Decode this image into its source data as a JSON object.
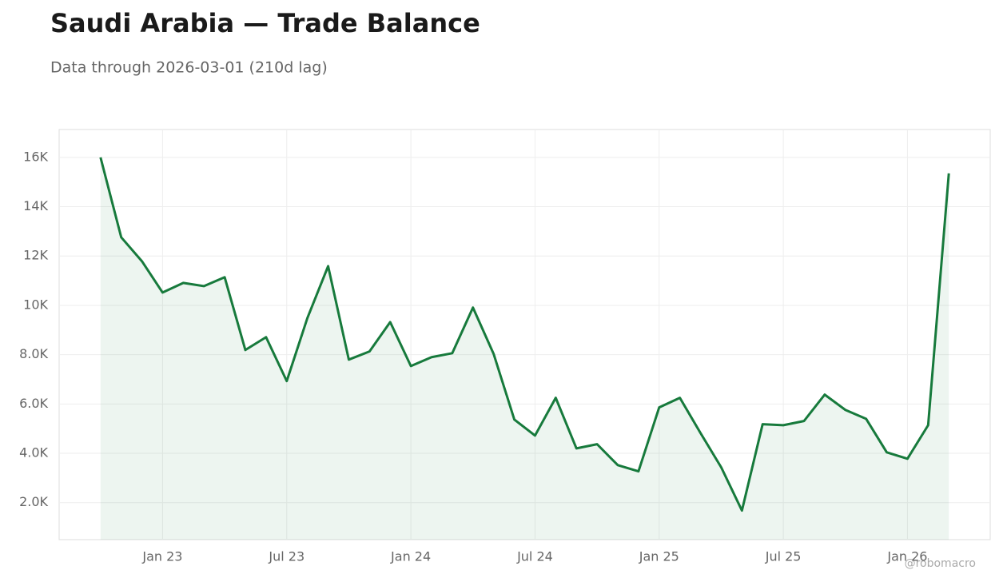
{
  "chart_data": {
    "type": "area",
    "title": "Saudi Arabia — Trade Balance",
    "subtitle": "Data through 2026-03-01 (210d lag)",
    "watermark": "@robomacro",
    "x": [
      "2022-10",
      "2022-11",
      "2022-12",
      "2023-01",
      "2023-02",
      "2023-03",
      "2023-04",
      "2023-05",
      "2023-06",
      "2023-07",
      "2023-08",
      "2023-09",
      "2023-10",
      "2023-11",
      "2023-12",
      "2024-01",
      "2024-02",
      "2024-03",
      "2024-04",
      "2024-05",
      "2024-06",
      "2024-07",
      "2024-08",
      "2024-09",
      "2024-10",
      "2024-11",
      "2024-12",
      "2025-01",
      "2025-02",
      "2025-03",
      "2025-04",
      "2025-05",
      "2025-06",
      "2025-07",
      "2025-08",
      "2025-09",
      "2025-10",
      "2025-11",
      "2025-12",
      "2026-01",
      "2026-02",
      "2026-03"
    ],
    "values": [
      16000,
      12760,
      11790,
      10520,
      10910,
      10780,
      11140,
      8190,
      8710,
      6930,
      9490,
      11590,
      7800,
      8130,
      9320,
      7540,
      7900,
      8060,
      9910,
      8030,
      5370,
      4720,
      6250,
      4200,
      4370,
      3520,
      3270,
      5860,
      6250,
      4820,
      3430,
      1680,
      5180,
      5140,
      5310,
      6380,
      5760,
      5400,
      4040,
      3780,
      5140,
      15350
    ],
    "color": "#177a3c",
    "xlim": [
      "2022-08",
      "2026-05"
    ],
    "xticks": [
      {
        "value": "2023-01",
        "label": "Jan 23"
      },
      {
        "value": "2023-07",
        "label": "Jul 23"
      },
      {
        "value": "2024-01",
        "label": "Jan 24"
      },
      {
        "value": "2024-07",
        "label": "Jul 24"
      },
      {
        "value": "2025-01",
        "label": "Jan 25"
      },
      {
        "value": "2025-07",
        "label": "Jul 25"
      },
      {
        "value": "2026-01",
        "label": "Jan 26"
      }
    ],
    "ylim": [
      500,
      17130
    ],
    "yticks": [
      {
        "value": 2000,
        "label": "2.0K"
      },
      {
        "value": 4000,
        "label": "4.0K"
      },
      {
        "value": 6000,
        "label": "6.0K"
      },
      {
        "value": 8000,
        "label": "8.0K"
      },
      {
        "value": 10000,
        "label": "10K"
      },
      {
        "value": 12000,
        "label": "12K"
      },
      {
        "value": 14000,
        "label": "14K"
      },
      {
        "value": 16000,
        "label": "16K"
      }
    ],
    "grid": true
  }
}
